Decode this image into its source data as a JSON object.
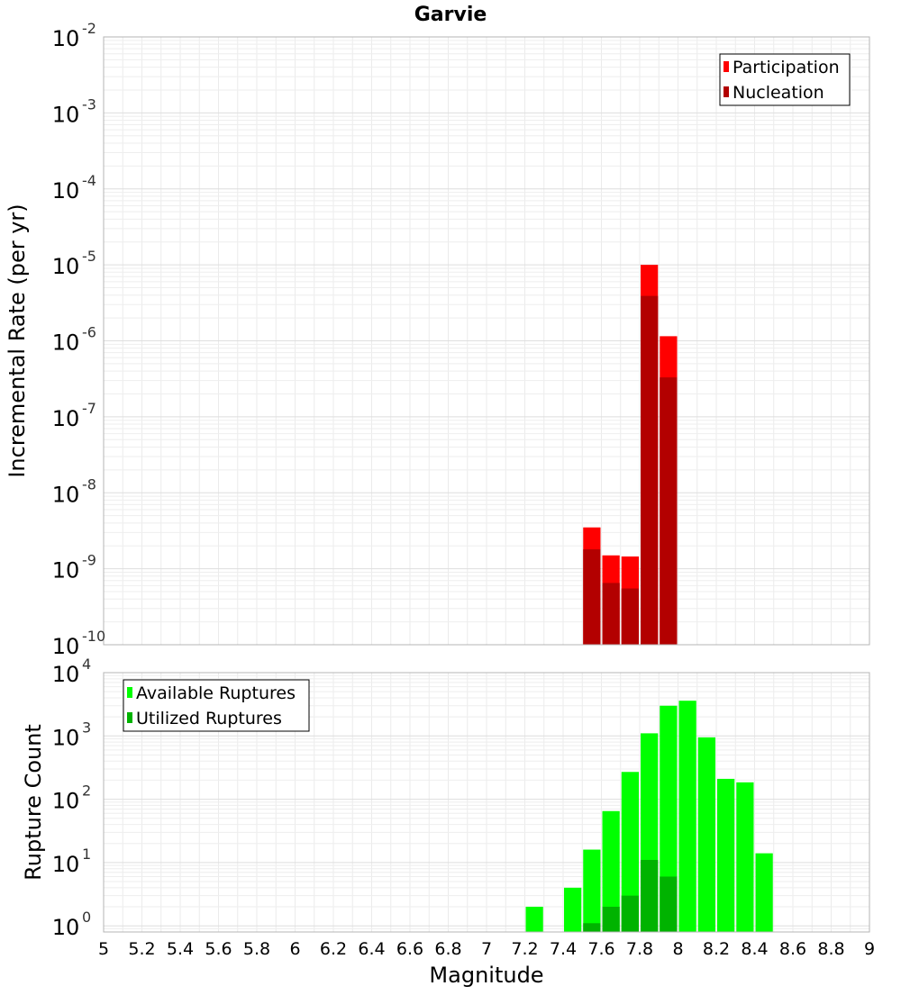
{
  "title": "Garvie",
  "xlabel": "Magnitude",
  "x_ticks": [
    "5",
    "5.2",
    "5.4",
    "5.6",
    "5.8",
    "6",
    "6.2",
    "6.4",
    "6.6",
    "6.8",
    "7",
    "7.2",
    "7.4",
    "7.6",
    "7.8",
    "8",
    "8.2",
    "8.4",
    "8.6",
    "8.8",
    "9"
  ],
  "chart_data": [
    {
      "type": "bar",
      "title": "Garvie",
      "ylabel": "Incremental Rate (per yr)",
      "xlim": [
        5,
        9
      ],
      "ylim": [
        1e-10,
        0.01
      ],
      "y_scale": "log",
      "y_tick_exponents": [
        "-2",
        "-3",
        "-4",
        "-5",
        "-6",
        "-7",
        "-8",
        "-9",
        "-10"
      ],
      "grid": true,
      "legend_position": "top-right",
      "bin_width": 0.1,
      "series": [
        {
          "name": "Participation",
          "color": "#ff0000",
          "x": [
            7.55,
            7.65,
            7.75,
            7.85,
            7.95
          ],
          "values": [
            3.5e-09,
            1.5e-09,
            1.45e-09,
            1e-05,
            1.15e-06
          ]
        },
        {
          "name": "Nucleation",
          "color": "#b30000",
          "x": [
            7.55,
            7.65,
            7.75,
            7.85,
            7.95
          ],
          "values": [
            1.8e-09,
            6.5e-10,
            5.5e-10,
            3.9e-06,
            3.3e-07
          ]
        }
      ]
    },
    {
      "type": "bar",
      "ylabel": "Rupture Count",
      "xlabel": "Magnitude",
      "xlim": [
        5,
        9
      ],
      "ylim": [
        0.8,
        10000
      ],
      "y_scale": "log",
      "y_tick_exponents": [
        "4",
        "3",
        "2",
        "1",
        "0"
      ],
      "grid": true,
      "legend_position": "top-left",
      "bin_width": 0.1,
      "series": [
        {
          "name": "Available Ruptures",
          "color": "#00ff00",
          "x": [
            7.25,
            7.45,
            7.55,
            7.65,
            7.75,
            7.85,
            7.95,
            8.05,
            8.15,
            8.25,
            8.35,
            8.45
          ],
          "values": [
            2,
            4,
            16,
            65,
            270,
            1100,
            3000,
            3600,
            950,
            210,
            185,
            14
          ]
        },
        {
          "name": "Utilized Ruptures",
          "color": "#00b300",
          "x": [
            7.55,
            7.65,
            7.75,
            7.85,
            7.95
          ],
          "values": [
            1.1,
            2,
            3,
            11,
            6
          ]
        }
      ]
    }
  ]
}
